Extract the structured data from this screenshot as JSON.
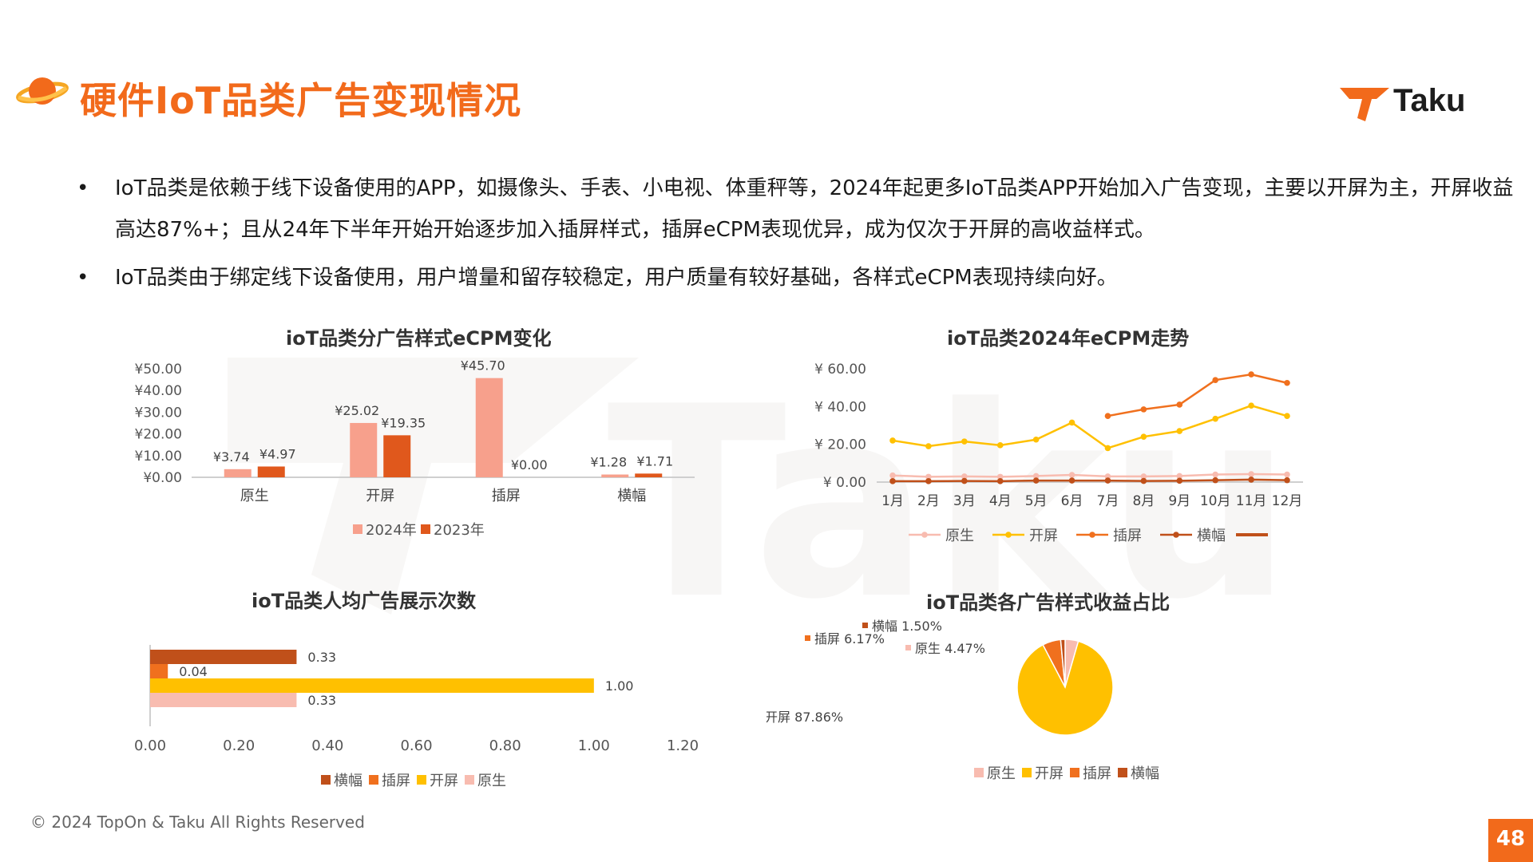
{
  "title": "硬件IoT品类广告变现情况",
  "logo_text": "Taku",
  "bullets": [
    "IoT品类是依赖于线下设备使用的APP，如摄像头、手表、小电视、体重秤等，2024年起更多IoT品类APP开始加入广告变现，主要以开屏为主，开屏收益高达87%+；且从24年下半年开始开始逐步加入插屏样式，插屏eCPM表现优异，成为仅次于开屏的高收益样式。",
    "IoT品类由于绑定线下设备使用，用户增量和留存较稳定，用户质量有较好基础，各样式eCPM表现持续向好。"
  ],
  "bullet_symbol": "•",
  "footer": "© 2024 TopOn & Taku All Rights Reserved",
  "page_number": "48",
  "colors": {
    "accent": "#F26A1B",
    "native": "#F8BCB0",
    "splash": "#FFC000",
    "interstitial": "#F0701E",
    "banner": "#C0501A",
    "bar_2024": "#F7A08C",
    "bar_2023": "#E0581C"
  },
  "chart_data": [
    {
      "type": "bar",
      "title": "ioT品类分广告样式eCPM变化",
      "categories": [
        "原生",
        "开屏",
        "插屏",
        "横幅"
      ],
      "series": [
        {
          "name": "2024年",
          "values": [
            3.74,
            25.02,
            45.7,
            1.28
          ],
          "labels": [
            "¥3.74",
            "¥25.02",
            "¥45.70",
            "¥1.28"
          ]
        },
        {
          "name": "2023年",
          "values": [
            4.97,
            19.35,
            0.0,
            1.71
          ],
          "labels": [
            "¥4.97",
            "¥19.35",
            "¥0.00",
            "¥1.71"
          ]
        }
      ],
      "yticks": [
        "¥0.00",
        "¥10.00",
        "¥20.00",
        "¥30.00",
        "¥40.00",
        "¥50.00"
      ],
      "ylim": [
        0,
        50
      ],
      "legend": "bottom"
    },
    {
      "type": "line",
      "title": "ioT品类2024年eCPM走势",
      "x": [
        "1月",
        "2月",
        "3月",
        "4月",
        "5月",
        "6月",
        "7月",
        "8月",
        "9月",
        "10月",
        "11月",
        "12月"
      ],
      "series": [
        {
          "name": "原生",
          "values": [
            3.5,
            2.8,
            3.0,
            2.8,
            3.2,
            3.8,
            3.0,
            3.0,
            3.2,
            4.0,
            4.2,
            4.0
          ]
        },
        {
          "name": "开屏",
          "values": [
            22,
            19,
            21.5,
            19.5,
            22.5,
            31.5,
            18,
            24,
            27,
            33.5,
            40.5,
            35
          ]
        },
        {
          "name": "插屏",
          "values": [
            null,
            null,
            null,
            null,
            null,
            null,
            35,
            38.5,
            41,
            54,
            57,
            52.5
          ]
        },
        {
          "name": "横幅",
          "values": [
            0.5,
            0.5,
            0.6,
            0.5,
            0.8,
            0.8,
            0.8,
            0.6,
            0.7,
            1.0,
            1.3,
            1.0
          ]
        }
      ],
      "yticks": [
        "¥ 0.00",
        "¥ 20.00",
        "¥ 40.00",
        "¥ 60.00"
      ],
      "ylim": [
        0,
        60
      ],
      "legend": "bottom"
    },
    {
      "type": "bar",
      "orientation": "horizontal",
      "title": "ioT品类人均广告展示次数",
      "categories": [
        "横幅",
        "插屏",
        "开屏",
        "原生"
      ],
      "values": [
        0.33,
        0.04,
        1.0,
        0.33
      ],
      "labels": [
        "0.33",
        "0.04",
        "1.00",
        "0.33"
      ],
      "xticks": [
        "0.00",
        "0.20",
        "0.40",
        "0.60",
        "0.80",
        "1.00",
        "1.20"
      ],
      "xlim": [
        0,
        1.2
      ],
      "legend": "bottom"
    },
    {
      "type": "pie",
      "title": "ioT品类各广告样式收益占比",
      "categories": [
        "原生",
        "开屏",
        "插屏",
        "横幅"
      ],
      "values": [
        4.47,
        87.86,
        6.17,
        1.5
      ],
      "labels": [
        "原生 4.47%",
        "开屏 87.86%",
        "插屏 6.17%",
        "横幅 1.50%"
      ],
      "legend": "bottom"
    }
  ]
}
